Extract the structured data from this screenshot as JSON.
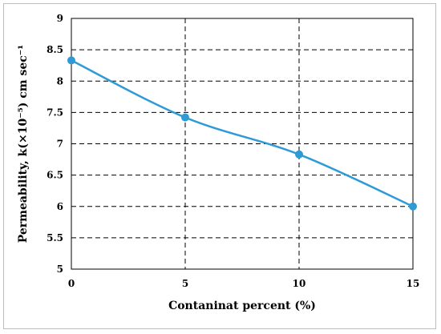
{
  "chart_data": {
    "type": "line",
    "xlabel": "Contaninat percent (%)",
    "ylabel": "Permeability, k(×10⁻⁵) cm sec⁻¹",
    "x": [
      0,
      5,
      10,
      15
    ],
    "series": [
      {
        "values": [
          8.33,
          7.42,
          6.83,
          6.0
        ]
      }
    ],
    "xlim": [
      0,
      15
    ],
    "ylim": [
      5,
      9
    ],
    "xticks": [
      0,
      5,
      10,
      15
    ],
    "yticks": [
      5,
      5.5,
      6,
      6.5,
      7,
      7.5,
      8,
      8.5,
      9
    ],
    "xtick_labels": [
      "0",
      "5",
      "10",
      "15"
    ],
    "ytick_labels": [
      "5",
      "5.5",
      "6",
      "6.5",
      "7",
      "7.5",
      "8",
      "8.5",
      "9"
    ],
    "grid": true,
    "grid_style": "dashed",
    "line_color": "#2e9bd6",
    "marker_color": "#2e9bd6",
    "smooth": true,
    "legend": "none"
  }
}
